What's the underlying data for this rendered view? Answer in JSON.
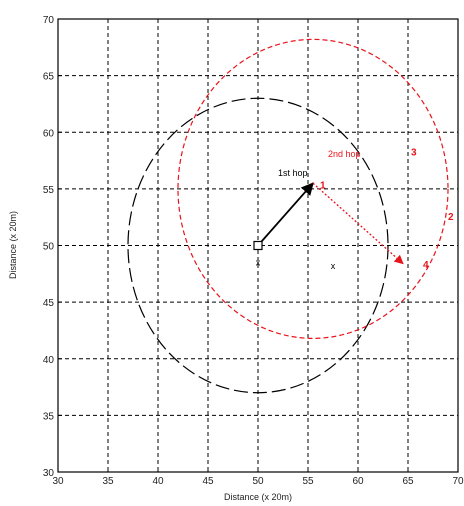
{
  "chart_data": {
    "type": "scatter",
    "title": "",
    "xlabel": "Distance (x 20m)",
    "ylabel": "Distance (x 20m)",
    "xlim": [
      30,
      70
    ],
    "ylim": [
      30,
      70
    ],
    "xticks": [
      30,
      35,
      40,
      45,
      50,
      55,
      60,
      65,
      70
    ],
    "yticks": [
      30,
      35,
      40,
      45,
      50,
      55,
      60,
      65,
      70
    ],
    "grid": true,
    "colors": {
      "first_hop": "#000000",
      "second_hop": "#e8141c"
    },
    "circles": [
      {
        "cx": 50,
        "cy": 50,
        "rx": 13,
        "ry": 13,
        "color": "#000000",
        "style": "dashed"
      },
      {
        "cx": 55.5,
        "cy": 55,
        "rx": 13.5,
        "ry": 13.2,
        "color": "#e8141c",
        "style": "dashed"
      }
    ],
    "source_node": {
      "x": 50,
      "y": 50,
      "marker": "square"
    },
    "x_markers": [
      {
        "x": 50,
        "y": 48.5,
        "label": "x"
      },
      {
        "x": 57.5,
        "y": 48.2,
        "label": "x"
      }
    ],
    "arrows": [
      {
        "from": [
          50,
          50
        ],
        "to": [
          55.5,
          55.5
        ],
        "color": "#000000",
        "style": "solid"
      },
      {
        "from": [
          55.5,
          55.5
        ],
        "to": [
          64.5,
          48.4
        ],
        "color": "#e8141c",
        "style": "dotted"
      }
    ],
    "annotations": [
      {
        "text": "1st hop",
        "x": 52,
        "y": 56.4,
        "color": "#000000",
        "kind": "label"
      },
      {
        "text": "2nd hop",
        "x": 57,
        "y": 58.1,
        "color": "#e8141c",
        "kind": "label"
      },
      {
        "text": "1",
        "x": 56.2,
        "y": 55.3,
        "color": "#e8141c",
        "kind": "num"
      },
      {
        "text": "2",
        "x": 69,
        "y": 52.5,
        "color": "#e8141c",
        "kind": "num"
      },
      {
        "text": "3",
        "x": 65.3,
        "y": 58.2,
        "color": "#e8141c",
        "kind": "num"
      },
      {
        "text": "4",
        "x": 66.5,
        "y": 48.3,
        "color": "#e8141c",
        "kind": "num"
      }
    ]
  }
}
